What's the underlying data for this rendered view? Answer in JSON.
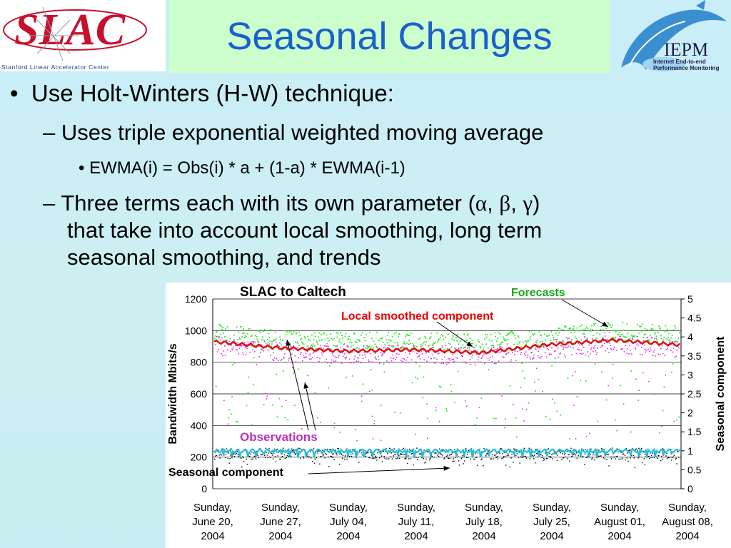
{
  "slide": {
    "title": "Seasonal Changes",
    "logo_left": {
      "name": "SLAC",
      "tagline": "Stanford Linear Accelerator Center"
    },
    "logo_right": {
      "name": "IEPM",
      "caption_line1": "Internet End-to-end",
      "caption_line2": "Performance Monitoring"
    },
    "bullets": {
      "b1": "Use Holt-Winters (H-W) technique:",
      "b2": "Uses triple exponential weighted moving average",
      "b3": "EWMA(i) = Obs(i) * a + (1-a) * EWMA(i-1)",
      "b4_pre": "Three terms each with its own parameter (",
      "b4_alpha": "α",
      "b4_sep1": ", ",
      "b4_beta": "β",
      "b4_sep2": ", ",
      "b4_gamma": "γ",
      "b4_post": ")",
      "b4_line2": "that take into account local smoothing, long term",
      "b4_line3": "seasonal smoothing, and trends"
    },
    "markers": {
      "l1": "•",
      "l2": "–",
      "l3": "•"
    },
    "colors": {
      "title": "#1a5fcf",
      "title_bg": "#ccffcc",
      "slide_bg": "#cdeff2"
    }
  },
  "chart_data": {
    "type": "scatter",
    "title": "SLAC to Caltech",
    "ylabel": "Bandwidth Mbits/s",
    "y2label": "Seasonal component",
    "ylim": [
      0,
      1200
    ],
    "y2lim": [
      0,
      5
    ],
    "yticks": [
      "0",
      "200",
      "400",
      "600",
      "800",
      "1000",
      "1200"
    ],
    "y2ticks": [
      "0",
      "0.5",
      "1",
      "1.5",
      "2",
      "2.5",
      "3",
      "3.5",
      "4",
      "4.5",
      "5"
    ],
    "x_categories": [
      [
        "Sunday,",
        "June 20,",
        "2004"
      ],
      [
        "Sunday,",
        "June 27,",
        "2004"
      ],
      [
        "Sunday,",
        "July 04,",
        "2004"
      ],
      [
        "Sunday,",
        "July 11,",
        "2004"
      ],
      [
        "Sunday,",
        "July 18,",
        "2004"
      ],
      [
        "Sunday,",
        "July 25,",
        "2004"
      ],
      [
        "Sunday,",
        "August 01,",
        "2004"
      ],
      [
        "Sunday,",
        "August 08,",
        "2004"
      ]
    ],
    "grid": true,
    "series": [
      {
        "name": "Forecasts",
        "color": "#22ee22",
        "center_mbps": 960,
        "spread": 60
      },
      {
        "name": "Observations",
        "color": "#ee22ee",
        "center_mbps": 900,
        "spread": 60
      },
      {
        "name": "Local smoothed component",
        "color": "#dd1111",
        "levels_mbps": [
          930,
          890,
          870,
          880,
          860,
          910,
          940,
          910
        ]
      },
      {
        "name": "Seasonal component",
        "color": "#22bbdd",
        "center": 1.0
      }
    ],
    "annotations": [
      {
        "text": "Forecasts",
        "color": "#11aa11"
      },
      {
        "text": "Local smoothed component",
        "color": "#ee0000"
      },
      {
        "text": "Observations",
        "color": "#bb33bb"
      },
      {
        "text": "Seasonal component",
        "color": "#000000"
      }
    ]
  }
}
